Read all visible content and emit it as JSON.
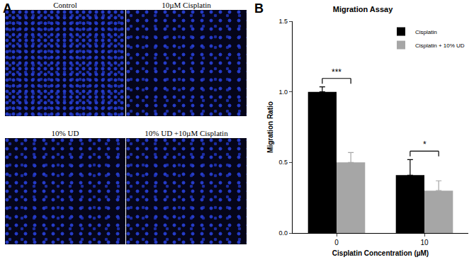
{
  "panel_a": {
    "label": "A",
    "images": [
      "Control",
      "10µM Cisplatin",
      "10% UD",
      "10% UD +10µM Cisplatin"
    ]
  },
  "panel_b_label": "B",
  "chart_data": {
    "type": "bar",
    "title": "Migration Assay",
    "x_label": "Cisplatin Concentration (µM)",
    "y_label": "Migration Ratio",
    "categories": [
      "0",
      "10"
    ],
    "series": [
      {
        "name": "Cisplatin",
        "color": "#000000",
        "values": [
          1.0,
          0.41
        ],
        "errors": [
          0.035,
          0.11
        ]
      },
      {
        "name": "Cisplatin + 10% UD",
        "color": "#a6a6a6",
        "values": [
          0.5,
          0.3
        ],
        "errors": [
          0.07,
          0.07
        ]
      }
    ],
    "ylim": [
      0,
      1.5
    ],
    "yticks": [
      {
        "value": 0,
        "label": "0.0"
      },
      {
        "value": 0.5,
        "label": "0.5"
      },
      {
        "value": 1,
        "label": "1.0"
      },
      {
        "value": 1.5,
        "label": "1.5"
      }
    ],
    "annotations": [
      {
        "category": "0",
        "text": "***"
      },
      {
        "category": "10",
        "text": "*"
      }
    ],
    "grid": false,
    "legend": "top right"
  }
}
